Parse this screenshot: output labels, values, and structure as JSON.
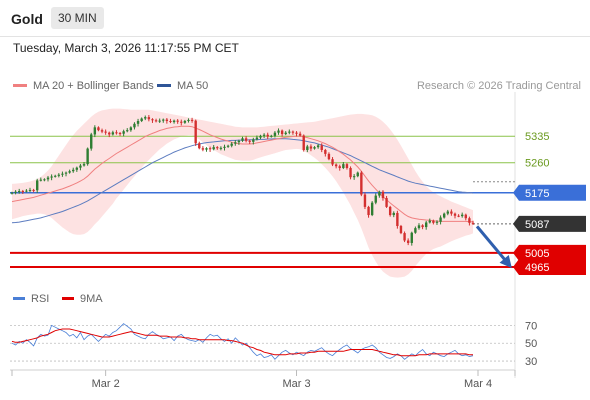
{
  "header": {
    "symbol": "Gold",
    "timeframe": "30 MIN"
  },
  "datetime": "Tuesday, March 3, 2026 11:17:55 PM CET",
  "legend": {
    "bb": {
      "label": "MA 20 + Bollinger Bands",
      "color": "#f08080"
    },
    "ma50": {
      "label": "MA 50",
      "color": "#2f5597"
    }
  },
  "credit": "Research © 2026 Trading Central",
  "rsi_legend": {
    "rsi": {
      "label": "RSI",
      "color": "#4a7fd6"
    },
    "ma": {
      "label": "9MA",
      "color": "#e00000"
    }
  },
  "colors": {
    "up": "#2e7d32",
    "down": "#d32f2f",
    "band": "#fde2e2",
    "level_green": "#8bc34a",
    "level_blue": "#3a6fd8",
    "level_red": "#e00000",
    "current": "#333333"
  },
  "chart_data": [
    {
      "type": "candlestick",
      "ylim": [
        4900,
        5460
      ],
      "x_ticks": [
        "Mar 2",
        "Mar 3",
        "Mar 4"
      ],
      "levels": [
        {
          "value": 5335,
          "label": "5335",
          "color": "#8bc34a",
          "style": "green-text"
        },
        {
          "value": 5260,
          "label": "5260",
          "color": "#8bc34a",
          "style": "green-text"
        },
        {
          "value": 5175,
          "label": "5175",
          "color": "#3a6fd8",
          "style": "tag"
        },
        {
          "value": 5087,
          "label": "5087",
          "color": "#333333",
          "style": "tag-current"
        },
        {
          "value": 5005,
          "label": "5005",
          "color": "#e00000",
          "style": "tag"
        },
        {
          "value": 4965,
          "label": "4965",
          "color": "#e00000",
          "style": "tag"
        }
      ],
      "closes": [
        5175,
        5178,
        5180,
        5179,
        5181,
        5183,
        5182,
        5210,
        5212,
        5213,
        5218,
        5221,
        5223,
        5226,
        5229,
        5232,
        5236,
        5240,
        5246,
        5252,
        5256,
        5300,
        5340,
        5360,
        5352,
        5348,
        5345,
        5340,
        5346,
        5344,
        5342,
        5349,
        5352,
        5360,
        5370,
        5378,
        5385,
        5389,
        5383,
        5380,
        5377,
        5379,
        5382,
        5378,
        5375,
        5379,
        5376,
        5373,
        5378,
        5381,
        5379,
        5315,
        5301,
        5297,
        5301,
        5298,
        5304,
        5301,
        5302,
        5305,
        5308,
        5314,
        5318,
        5322,
        5329,
        5322,
        5319,
        5326,
        5331,
        5336,
        5339,
        5334,
        5336,
        5345,
        5351,
        5341,
        5345,
        5348,
        5345,
        5342,
        5337,
        5296,
        5306,
        5300,
        5304,
        5309,
        5296,
        5285,
        5270,
        5255,
        5250,
        5245,
        5256,
        5245,
        5219,
        5222,
        5232,
        5170,
        5135,
        5112,
        5147,
        5167,
        5178,
        5160,
        5135,
        5112,
        5118,
        5081,
        5061,
        5040,
        5033,
        5062,
        5075,
        5083,
        5078,
        5091,
        5096,
        5090,
        5093,
        5105,
        5116,
        5122,
        5116,
        5110,
        5109,
        5113,
        5103,
        5090,
        5087
      ],
      "ma20": [
        5150,
        5152,
        5154,
        5156,
        5158,
        5160,
        5162,
        5165,
        5168,
        5171,
        5174,
        5177,
        5180,
        5183,
        5186,
        5190,
        5194,
        5198,
        5203,
        5208,
        5214,
        5222,
        5232,
        5242,
        5250,
        5258,
        5265,
        5272,
        5279,
        5286,
        5292,
        5298,
        5304,
        5310,
        5316,
        5322,
        5328,
        5334,
        5339,
        5343,
        5347,
        5351,
        5354,
        5357,
        5359,
        5361,
        5362,
        5363,
        5363,
        5363,
        5362,
        5358,
        5354,
        5349,
        5344,
        5339,
        5335,
        5331,
        5327,
        5324,
        5321,
        5318,
        5315,
        5314,
        5313,
        5313,
        5313,
        5314,
        5316,
        5318,
        5320,
        5322,
        5324,
        5326,
        5328,
        5330,
        5332,
        5333,
        5334,
        5335,
        5335,
        5333,
        5331,
        5328,
        5325,
        5322,
        5318,
        5314,
        5309,
        5304,
        5298,
        5291,
        5284,
        5276,
        5268,
        5258,
        5248,
        5236,
        5222,
        5208,
        5196,
        5185,
        5174,
        5164,
        5155,
        5146,
        5138,
        5130,
        5122,
        5114,
        5108,
        5104,
        5102,
        5100,
        5099,
        5098,
        5097,
        5096,
        5095,
        5094,
        5094,
        5094,
        5094,
        5094,
        5094,
        5094,
        5094,
        5093,
        5093
      ],
      "ma50": [
        5090,
        5091,
        5092,
        5094,
        5096,
        5098,
        5100,
        5102,
        5104,
        5107,
        5110,
        5113,
        5116,
        5119,
        5122,
        5126,
        5130,
        5134,
        5138,
        5142,
        5147,
        5152,
        5158,
        5164,
        5170,
        5176,
        5182,
        5188,
        5194,
        5200,
        5206,
        5212,
        5218,
        5224,
        5230,
        5236,
        5242,
        5248,
        5254,
        5260,
        5265,
        5270,
        5275,
        5280,
        5285,
        5290,
        5294,
        5298,
        5302,
        5305,
        5308,
        5311,
        5313,
        5315,
        5317,
        5318,
        5319,
        5320,
        5321,
        5322,
        5322,
        5323,
        5323,
        5324,
        5324,
        5324,
        5325,
        5325,
        5325,
        5326,
        5326,
        5327,
        5327,
        5328,
        5328,
        5328,
        5328,
        5327,
        5326,
        5325,
        5324,
        5322,
        5320,
        5318,
        5316,
        5313,
        5310,
        5307,
        5304,
        5300,
        5296,
        5292,
        5288,
        5284,
        5280,
        5275,
        5270,
        5265,
        5260,
        5255,
        5250,
        5245,
        5240,
        5236,
        5232,
        5228,
        5224,
        5220,
        5216,
        5212,
        5208,
        5205,
        5202,
        5200,
        5198,
        5196,
        5194,
        5192,
        5190,
        5188,
        5186,
        5184,
        5182,
        5180,
        5178,
        5177,
        5176,
        5175,
        5174
      ],
      "band_upper": [
        5200,
        5201,
        5202,
        5203,
        5205,
        5207,
        5210,
        5214,
        5220,
        5228,
        5238,
        5250,
        5265,
        5280,
        5295,
        5310,
        5325,
        5338,
        5350,
        5360,
        5370,
        5380,
        5390,
        5398,
        5404,
        5408,
        5410,
        5412,
        5413,
        5413,
        5413,
        5412,
        5411,
        5410,
        5410,
        5410,
        5410,
        5410,
        5410,
        5408,
        5406,
        5404,
        5402,
        5400,
        5398,
        5396,
        5394,
        5392,
        5390,
        5388,
        5386,
        5384,
        5382,
        5380,
        5378,
        5376,
        5374,
        5372,
        5370,
        5368,
        5366,
        5364,
        5362,
        5361,
        5360,
        5360,
        5360,
        5360,
        5360,
        5361,
        5362,
        5363,
        5364,
        5365,
        5366,
        5367,
        5368,
        5369,
        5370,
        5371,
        5372,
        5373,
        5374,
        5375,
        5376,
        5378,
        5380,
        5382,
        5384,
        5386,
        5388,
        5390,
        5392,
        5394,
        5396,
        5397,
        5398,
        5398,
        5397,
        5396,
        5394,
        5390,
        5384,
        5376,
        5366,
        5354,
        5340,
        5325,
        5308,
        5290,
        5272,
        5254,
        5236,
        5220,
        5206,
        5194,
        5184,
        5176,
        5170,
        5165,
        5160,
        5155,
        5150,
        5146,
        5142,
        5138,
        5134,
        5130,
        5126
      ],
      "band_lower": [
        5100,
        5103,
        5106,
        5109,
        5111,
        5113,
        5114,
        5116,
        5116,
        5114,
        5110,
        5104,
        5095,
        5086,
        5077,
        5070,
        5063,
        5058,
        5056,
        5056,
        5058,
        5064,
        5074,
        5086,
        5096,
        5108,
        5120,
        5132,
        5144,
        5159,
        5171,
        5184,
        5197,
        5210,
        5222,
        5234,
        5246,
        5258,
        5268,
        5278,
        5288,
        5298,
        5306,
        5314,
        5320,
        5326,
        5330,
        5334,
        5336,
        5338,
        5338,
        5332,
        5326,
        5318,
        5310,
        5302,
        5296,
        5290,
        5284,
        5280,
        5276,
        5272,
        5268,
        5267,
        5266,
        5266,
        5266,
        5268,
        5272,
        5275,
        5278,
        5281,
        5284,
        5287,
        5290,
        5293,
        5296,
        5297,
        5298,
        5299,
        5298,
        5293,
        5288,
        5281,
        5274,
        5266,
        5256,
        5246,
        5234,
        5222,
        5208,
        5192,
        5176,
        5158,
        5140,
        5119,
        5098,
        5074,
        5047,
        5020,
        4998,
        4980,
        4964,
        4952,
        4944,
        4938,
        4936,
        4935,
        4936,
        4938,
        4944,
        4954,
        4968,
        4980,
        4992,
        5002,
        5010,
        5016,
        5020,
        5023,
        5028,
        5033,
        5038,
        5042,
        5046,
        5050,
        5054,
        5056,
        5060
      ]
    },
    {
      "type": "line",
      "title": "RSI",
      "ylim": [
        20,
        85
      ],
      "y_ticks": [
        70,
        50,
        30
      ],
      "series": [
        {
          "name": "RSI",
          "values": [
            50,
            48,
            52,
            50,
            54,
            51,
            47,
            56,
            60,
            58,
            59,
            70,
            68,
            66,
            64,
            62,
            58,
            60,
            56,
            62,
            54,
            58,
            60,
            56,
            52,
            56,
            60,
            58,
            62,
            64,
            68,
            72,
            69,
            66,
            60,
            58,
            56,
            55,
            60,
            63,
            60,
            58,
            55,
            56,
            57,
            53,
            58,
            60,
            56,
            54,
            53,
            52,
            54,
            51,
            56,
            60,
            58,
            59,
            55,
            52,
            55,
            50,
            56,
            52,
            48,
            50,
            45,
            40,
            36,
            38,
            34,
            35,
            37,
            32,
            36,
            40,
            42,
            39,
            37,
            40,
            38,
            36,
            40,
            42,
            41,
            43,
            45,
            41,
            38,
            36,
            40,
            43,
            46,
            48,
            44,
            42,
            39,
            43,
            45,
            46,
            48,
            45,
            40,
            37,
            34,
            33,
            35,
            38,
            36,
            32,
            35,
            38,
            36,
            40,
            43,
            38,
            36,
            40,
            38,
            36,
            35,
            38,
            40,
            42,
            38,
            36,
            37,
            35,
            36
          ]
        },
        {
          "name": "9MA",
          "values": [
            52,
            51,
            51,
            52,
            53,
            54,
            55,
            56,
            58,
            59,
            60,
            62,
            64,
            65,
            66,
            66,
            66,
            65,
            64,
            63,
            62,
            61,
            60,
            59,
            58,
            57,
            57,
            57,
            58,
            59,
            60,
            61,
            62,
            63,
            62,
            61,
            60,
            59,
            59,
            59,
            59,
            58,
            58,
            58,
            57,
            57,
            57,
            57,
            56,
            56,
            55,
            55,
            54,
            54,
            54,
            54,
            54,
            54,
            54,
            54,
            53,
            53,
            52,
            51,
            50,
            48,
            46,
            45,
            43,
            42,
            40,
            39,
            38,
            37,
            37,
            37,
            37,
            38,
            38,
            38,
            39,
            39,
            39,
            40,
            40,
            41,
            41,
            41,
            41,
            41,
            41,
            41,
            41,
            42,
            43,
            43,
            43,
            43,
            43,
            43,
            43,
            42,
            41,
            40,
            39,
            38,
            37,
            37,
            36,
            36,
            36,
            36,
            36,
            37,
            37,
            37,
            38,
            38,
            38,
            38,
            38,
            38,
            38,
            38,
            38,
            38,
            38,
            37,
            37
          ]
        }
      ]
    }
  ]
}
